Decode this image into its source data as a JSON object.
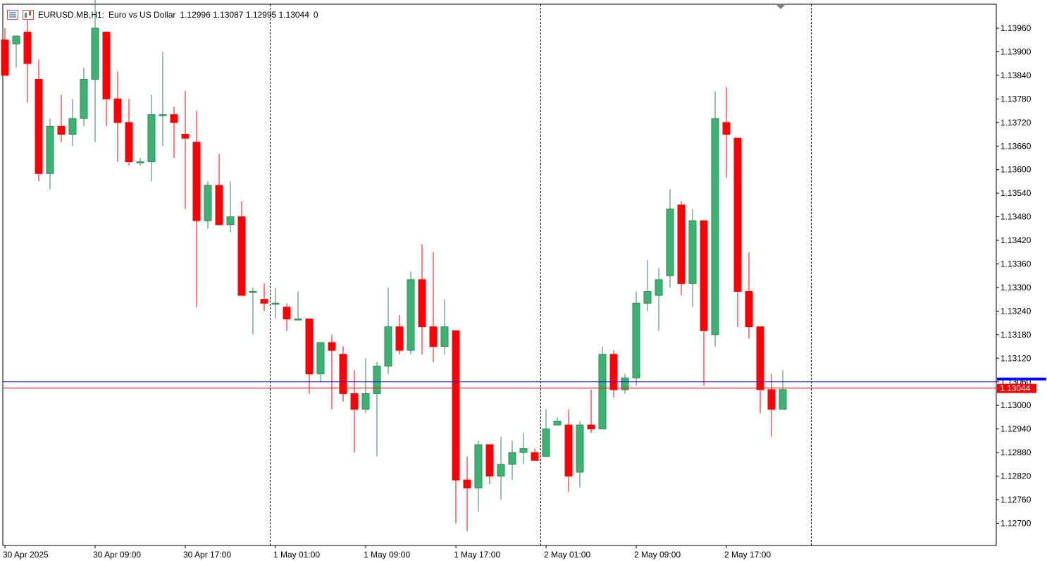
{
  "header": {
    "symbol_period": "EURUSD.MB,H1:",
    "description": "Euro vs US Dollar",
    "ohlc": "1.12996 1.13087 1.12995 1.13044",
    "volume": "0"
  },
  "colors": {
    "bull": "#3cb371",
    "bear": "#ff0000",
    "bid_line": "#ff0000",
    "ask_line": "#0000ff",
    "axis": "#000000"
  },
  "chart_data": {
    "type": "candlestick",
    "ylim": [
      1.1265,
      1.1402
    ],
    "y_ticks": [
      "1.13960",
      "1.13900",
      "1.13840",
      "1.13780",
      "1.13720",
      "1.13660",
      "1.13600",
      "1.13540",
      "1.13480",
      "1.13420",
      "1.13360",
      "1.13300",
      "1.13240",
      "1.13180",
      "1.13120",
      "1.13060",
      "1.13000",
      "1.12940",
      "1.12880",
      "1.12820",
      "1.12760",
      "1.12700"
    ],
    "x_ticks": [
      {
        "label": "30 Apr 2025",
        "index": 0
      },
      {
        "label": "30 Apr 09:00",
        "index": 8
      },
      {
        "label": "30 Apr 17:00",
        "index": 16
      },
      {
        "label": "1 May 01:00",
        "index": 24
      },
      {
        "label": "1 May 09:00",
        "index": 32
      },
      {
        "label": "1 May 17:00",
        "index": 40
      },
      {
        "label": "2 May 01:00",
        "index": 48
      },
      {
        "label": "2 May 09:00",
        "index": 56
      },
      {
        "label": "2 May 17:00",
        "index": 64
      }
    ],
    "day_separators": [
      23,
      47,
      71
    ],
    "current_price_label": "1.13044",
    "bid": 1.13044,
    "ask": 1.1306,
    "candles": [
      [
        1.1393,
        1.1396,
        1.1384,
        1.1384
      ],
      [
        1.1392,
        1.1394,
        1.1386,
        1.1394
      ],
      [
        1.1395,
        1.1398,
        1.1377,
        1.1387
      ],
      [
        1.1383,
        1.1388,
        1.1357,
        1.1359
      ],
      [
        1.1359,
        1.1373,
        1.1355,
        1.1371
      ],
      [
        1.1371,
        1.1379,
        1.1367,
        1.1369
      ],
      [
        1.1369,
        1.1378,
        1.1366,
        1.1373
      ],
      [
        1.1373,
        1.1386,
        1.1371,
        1.1383
      ],
      [
        1.1383,
        1.1405,
        1.1367,
        1.1396
      ],
      [
        1.1395,
        1.1395,
        1.1371,
        1.1378
      ],
      [
        1.1378,
        1.1385,
        1.1362,
        1.1372
      ],
      [
        1.1372,
        1.1378,
        1.1361,
        1.1362
      ],
      [
        1.1362,
        1.1363,
        1.1361,
        1.1362
      ],
      [
        1.1362,
        1.1379,
        1.1357,
        1.1374
      ],
      [
        1.1374,
        1.139,
        1.1366,
        1.1374
      ],
      [
        1.1374,
        1.1376,
        1.1363,
        1.1372
      ],
      [
        1.1369,
        1.138,
        1.135,
        1.1368
      ],
      [
        1.1367,
        1.1375,
        1.1325,
        1.1347
      ],
      [
        1.1347,
        1.1357,
        1.1345,
        1.1356
      ],
      [
        1.1356,
        1.1364,
        1.1346,
        1.1346
      ],
      [
        1.1346,
        1.1357,
        1.1344,
        1.1348
      ],
      [
        1.1348,
        1.1352,
        1.1328,
        1.1328
      ],
      [
        1.1329,
        1.133,
        1.1318,
        1.1329
      ],
      [
        1.1327,
        1.1331,
        1.1324,
        1.1326
      ],
      [
        1.1326,
        1.133,
        1.1322,
        1.1326
      ],
      [
        1.1325,
        1.1326,
        1.1319,
        1.1322
      ],
      [
        1.1322,
        1.1329,
        1.1322,
        1.1322
      ],
      [
        1.1322,
        1.1322,
        1.1303,
        1.1308
      ],
      [
        1.1308,
        1.1316,
        1.1306,
        1.1316
      ],
      [
        1.1316,
        1.1318,
        1.1299,
        1.1314
      ],
      [
        1.1313,
        1.1315,
        1.1301,
        1.1303
      ],
      [
        1.1303,
        1.1309,
        1.1288,
        1.1299
      ],
      [
        1.1299,
        1.1312,
        1.1298,
        1.1303
      ],
      [
        1.1303,
        1.1311,
        1.1287,
        1.131
      ],
      [
        1.131,
        1.133,
        1.1308,
        1.132
      ],
      [
        1.132,
        1.1323,
        1.1313,
        1.1314
      ],
      [
        1.1314,
        1.1334,
        1.1313,
        1.1332
      ],
      [
        1.1332,
        1.1341,
        1.1313,
        1.132
      ],
      [
        1.132,
        1.1339,
        1.1311,
        1.1315
      ],
      [
        1.1315,
        1.1327,
        1.1313,
        1.132
      ],
      [
        1.1319,
        1.1319,
        1.127,
        1.1281
      ],
      [
        1.1281,
        1.1287,
        1.1268,
        1.1279
      ],
      [
        1.1279,
        1.1291,
        1.1273,
        1.129
      ],
      [
        1.129,
        1.129,
        1.128,
        1.1282
      ],
      [
        1.1282,
        1.1292,
        1.1276,
        1.1285
      ],
      [
        1.1285,
        1.1291,
        1.1281,
        1.1288
      ],
      [
        1.1288,
        1.1293,
        1.1285,
        1.1289
      ],
      [
        1.1288,
        1.1289,
        1.1286,
        1.1286
      ],
      [
        1.1287,
        1.1299,
        1.1287,
        1.1294
      ],
      [
        1.1295,
        1.1297,
        1.1295,
        1.1296
      ],
      [
        1.1295,
        1.1299,
        1.1278,
        1.1282
      ],
      [
        1.1283,
        1.1296,
        1.1279,
        1.1295
      ],
      [
        1.1295,
        1.1304,
        1.1293,
        1.1294
      ],
      [
        1.1294,
        1.1315,
        1.1294,
        1.1313
      ],
      [
        1.1313,
        1.1314,
        1.1302,
        1.1304
      ],
      [
        1.1304,
        1.1308,
        1.1303,
        1.1307
      ],
      [
        1.1307,
        1.1329,
        1.1305,
        1.1326
      ],
      [
        1.1326,
        1.1337,
        1.1324,
        1.1329
      ],
      [
        1.1328,
        1.1335,
        1.1319,
        1.1332
      ],
      [
        1.1333,
        1.1355,
        1.133,
        1.135
      ],
      [
        1.1351,
        1.1352,
        1.1328,
        1.1331
      ],
      [
        1.1331,
        1.135,
        1.1325,
        1.1347
      ],
      [
        1.1347,
        1.1347,
        1.1305,
        1.1319
      ],
      [
        1.1318,
        1.138,
        1.1315,
        1.1373
      ],
      [
        1.1372,
        1.1381,
        1.1358,
        1.1369
      ],
      [
        1.1368,
        1.1368,
        1.132,
        1.1329
      ],
      [
        1.1329,
        1.1339,
        1.1317,
        1.132
      ],
      [
        1.132,
        1.132,
        1.1298,
        1.1304
      ],
      [
        1.1304,
        1.1308,
        1.1292,
        1.1299
      ],
      [
        1.1299,
        1.1309,
        1.1299,
        1.1304
      ]
    ]
  }
}
